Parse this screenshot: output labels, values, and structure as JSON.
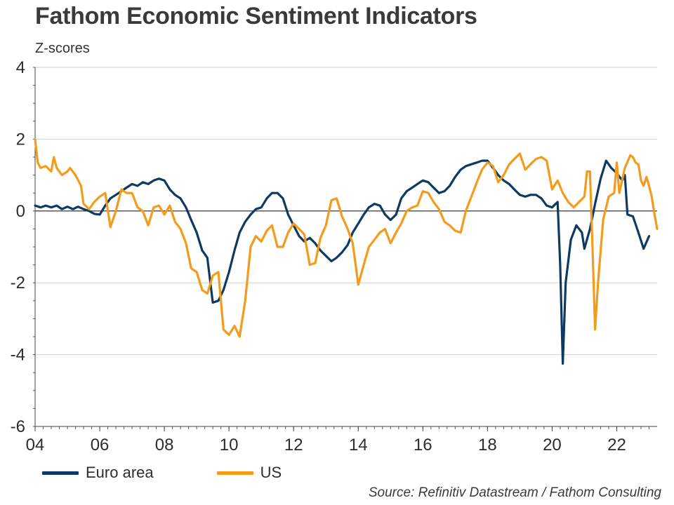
{
  "chart_data": {
    "type": "line",
    "title": "Fathom Economic Sentiment Indicators",
    "subtitle": "Z-scores",
    "xlabel": "",
    "ylabel": "",
    "source": "Source: Refinitiv Datastream / Fathom Consulting",
    "x_ticks": [
      "04",
      "06",
      "08",
      "10",
      "12",
      "14",
      "16",
      "18",
      "20",
      "22"
    ],
    "y_ticks": [
      4,
      2,
      0,
      -2,
      -4,
      -6
    ],
    "xlim": [
      2004.0,
      2023.25
    ],
    "ylim": [
      -6,
      4
    ],
    "grid": "horizontal",
    "legend_position": "bottom-left",
    "series": [
      {
        "name": "Euro area",
        "color": "#0d3a63",
        "points": [
          [
            2004.0,
            0.15
          ],
          [
            2004.17,
            0.1
          ],
          [
            2004.33,
            0.15
          ],
          [
            2004.5,
            0.1
          ],
          [
            2004.67,
            0.15
          ],
          [
            2004.83,
            0.05
          ],
          [
            2005.0,
            0.12
          ],
          [
            2005.17,
            0.05
          ],
          [
            2005.33,
            0.12
          ],
          [
            2005.5,
            0.05
          ],
          [
            2005.67,
            0.0
          ],
          [
            2005.83,
            -0.08
          ],
          [
            2006.0,
            -0.1
          ],
          [
            2006.17,
            0.15
          ],
          [
            2006.33,
            0.35
          ],
          [
            2006.5,
            0.45
          ],
          [
            2006.67,
            0.55
          ],
          [
            2006.83,
            0.65
          ],
          [
            2007.0,
            0.75
          ],
          [
            2007.17,
            0.7
          ],
          [
            2007.33,
            0.8
          ],
          [
            2007.5,
            0.75
          ],
          [
            2007.67,
            0.85
          ],
          [
            2007.83,
            0.9
          ],
          [
            2008.0,
            0.85
          ],
          [
            2008.17,
            0.6
          ],
          [
            2008.33,
            0.45
          ],
          [
            2008.5,
            0.35
          ],
          [
            2008.67,
            0.1
          ],
          [
            2008.83,
            -0.25
          ],
          [
            2009.0,
            -0.6
          ],
          [
            2009.17,
            -1.1
          ],
          [
            2009.33,
            -1.3
          ],
          [
            2009.5,
            -2.55
          ],
          [
            2009.67,
            -2.5
          ],
          [
            2009.83,
            -2.2
          ],
          [
            2010.0,
            -1.7
          ],
          [
            2010.17,
            -1.1
          ],
          [
            2010.33,
            -0.6
          ],
          [
            2010.5,
            -0.3
          ],
          [
            2010.67,
            -0.1
          ],
          [
            2010.83,
            0.05
          ],
          [
            2011.0,
            0.1
          ],
          [
            2011.17,
            0.35
          ],
          [
            2011.33,
            0.5
          ],
          [
            2011.5,
            0.5
          ],
          [
            2011.67,
            0.35
          ],
          [
            2011.83,
            -0.1
          ],
          [
            2012.0,
            -0.4
          ],
          [
            2012.17,
            -0.7
          ],
          [
            2012.33,
            -0.85
          ],
          [
            2012.5,
            -0.75
          ],
          [
            2012.67,
            -0.9
          ],
          [
            2012.83,
            -1.1
          ],
          [
            2013.0,
            -1.25
          ],
          [
            2013.17,
            -1.4
          ],
          [
            2013.33,
            -1.3
          ],
          [
            2013.5,
            -1.15
          ],
          [
            2013.67,
            -0.95
          ],
          [
            2013.83,
            -0.6
          ],
          [
            2014.0,
            -0.35
          ],
          [
            2014.17,
            -0.1
          ],
          [
            2014.33,
            0.1
          ],
          [
            2014.5,
            0.2
          ],
          [
            2014.67,
            0.15
          ],
          [
            2014.83,
            -0.1
          ],
          [
            2015.0,
            -0.25
          ],
          [
            2015.17,
            -0.1
          ],
          [
            2015.33,
            0.35
          ],
          [
            2015.5,
            0.55
          ],
          [
            2015.67,
            0.65
          ],
          [
            2015.83,
            0.75
          ],
          [
            2016.0,
            0.85
          ],
          [
            2016.17,
            0.8
          ],
          [
            2016.33,
            0.65
          ],
          [
            2016.5,
            0.5
          ],
          [
            2016.67,
            0.55
          ],
          [
            2016.83,
            0.7
          ],
          [
            2017.0,
            0.95
          ],
          [
            2017.17,
            1.15
          ],
          [
            2017.33,
            1.25
          ],
          [
            2017.5,
            1.3
          ],
          [
            2017.67,
            1.35
          ],
          [
            2017.83,
            1.4
          ],
          [
            2018.0,
            1.4
          ],
          [
            2018.17,
            1.2
          ],
          [
            2018.33,
            1.0
          ],
          [
            2018.5,
            0.85
          ],
          [
            2018.67,
            0.75
          ],
          [
            2018.83,
            0.6
          ],
          [
            2019.0,
            0.45
          ],
          [
            2019.17,
            0.4
          ],
          [
            2019.33,
            0.45
          ],
          [
            2019.5,
            0.45
          ],
          [
            2019.67,
            0.35
          ],
          [
            2019.83,
            0.15
          ],
          [
            2020.0,
            0.1
          ],
          [
            2020.17,
            0.25
          ],
          [
            2020.25,
            -1.5
          ],
          [
            2020.33,
            -4.25
          ],
          [
            2020.42,
            -2.0
          ],
          [
            2020.58,
            -0.8
          ],
          [
            2020.75,
            -0.4
          ],
          [
            2020.92,
            -0.6
          ],
          [
            2021.0,
            -1.05
          ],
          [
            2021.17,
            -0.5
          ],
          [
            2021.33,
            0.2
          ],
          [
            2021.5,
            0.9
          ],
          [
            2021.67,
            1.4
          ],
          [
            2021.83,
            1.2
          ],
          [
            2022.0,
            1.05
          ],
          [
            2022.17,
            0.85
          ],
          [
            2022.25,
            1.0
          ],
          [
            2022.33,
            -0.1
          ],
          [
            2022.5,
            -0.15
          ],
          [
            2022.67,
            -0.6
          ],
          [
            2022.83,
            -1.05
          ],
          [
            2023.0,
            -0.7
          ]
        ]
      },
      {
        "name": "US",
        "color": "#f59b1c",
        "points": [
          [
            2004.0,
            2.0
          ],
          [
            2004.08,
            1.35
          ],
          [
            2004.17,
            1.2
          ],
          [
            2004.33,
            1.25
          ],
          [
            2004.5,
            1.1
          ],
          [
            2004.58,
            1.5
          ],
          [
            2004.67,
            1.2
          ],
          [
            2004.83,
            1.0
          ],
          [
            2005.0,
            1.1
          ],
          [
            2005.08,
            1.2
          ],
          [
            2005.25,
            1.0
          ],
          [
            2005.42,
            0.7
          ],
          [
            2005.5,
            0.2
          ],
          [
            2005.67,
            0.05
          ],
          [
            2005.83,
            0.25
          ],
          [
            2006.0,
            0.4
          ],
          [
            2006.17,
            0.5
          ],
          [
            2006.33,
            -0.45
          ],
          [
            2006.5,
            0.0
          ],
          [
            2006.67,
            0.6
          ],
          [
            2006.83,
            0.5
          ],
          [
            2007.0,
            0.5
          ],
          [
            2007.17,
            0.1
          ],
          [
            2007.33,
            0.0
          ],
          [
            2007.5,
            -0.4
          ],
          [
            2007.67,
            0.1
          ],
          [
            2007.83,
            0.15
          ],
          [
            2008.0,
            -0.1
          ],
          [
            2008.17,
            0.15
          ],
          [
            2008.33,
            -0.3
          ],
          [
            2008.5,
            -0.5
          ],
          [
            2008.67,
            -0.9
          ],
          [
            2008.83,
            -1.6
          ],
          [
            2009.0,
            -1.7
          ],
          [
            2009.17,
            -2.2
          ],
          [
            2009.33,
            -2.3
          ],
          [
            2009.5,
            -1.8
          ],
          [
            2009.67,
            -1.7
          ],
          [
            2009.83,
            -3.3
          ],
          [
            2010.0,
            -3.45
          ],
          [
            2010.17,
            -3.2
          ],
          [
            2010.33,
            -3.5
          ],
          [
            2010.5,
            -2.5
          ],
          [
            2010.67,
            -1.0
          ],
          [
            2010.83,
            -0.7
          ],
          [
            2011.0,
            -0.85
          ],
          [
            2011.17,
            -0.55
          ],
          [
            2011.33,
            -0.4
          ],
          [
            2011.5,
            -1.0
          ],
          [
            2011.67,
            -1.0
          ],
          [
            2011.83,
            -0.6
          ],
          [
            2012.0,
            -0.35
          ],
          [
            2012.17,
            -0.5
          ],
          [
            2012.33,
            -0.65
          ],
          [
            2012.5,
            -1.5
          ],
          [
            2012.67,
            -1.45
          ],
          [
            2012.83,
            -0.75
          ],
          [
            2013.0,
            -0.4
          ],
          [
            2013.17,
            0.3
          ],
          [
            2013.33,
            0.35
          ],
          [
            2013.5,
            -0.15
          ],
          [
            2013.67,
            -0.5
          ],
          [
            2013.83,
            -0.9
          ],
          [
            2014.0,
            -2.05
          ],
          [
            2014.17,
            -1.5
          ],
          [
            2014.33,
            -1.0
          ],
          [
            2014.5,
            -0.8
          ],
          [
            2014.67,
            -0.6
          ],
          [
            2014.83,
            -0.5
          ],
          [
            2015.0,
            -0.9
          ],
          [
            2015.17,
            -0.6
          ],
          [
            2015.33,
            -0.35
          ],
          [
            2015.5,
            0.0
          ],
          [
            2015.67,
            0.1
          ],
          [
            2015.83,
            0.15
          ],
          [
            2016.0,
            0.55
          ],
          [
            2016.17,
            0.5
          ],
          [
            2016.33,
            0.25
          ],
          [
            2016.5,
            0.05
          ],
          [
            2016.67,
            -0.3
          ],
          [
            2016.83,
            -0.4
          ],
          [
            2017.0,
            -0.55
          ],
          [
            2017.17,
            -0.6
          ],
          [
            2017.33,
            0.0
          ],
          [
            2017.5,
            0.4
          ],
          [
            2017.67,
            0.8
          ],
          [
            2017.83,
            1.15
          ],
          [
            2018.0,
            1.35
          ],
          [
            2018.17,
            1.25
          ],
          [
            2018.33,
            0.8
          ],
          [
            2018.5,
            1.0
          ],
          [
            2018.67,
            1.3
          ],
          [
            2018.83,
            1.45
          ],
          [
            2019.0,
            1.6
          ],
          [
            2019.17,
            1.15
          ],
          [
            2019.33,
            1.3
          ],
          [
            2019.5,
            1.45
          ],
          [
            2019.67,
            1.5
          ],
          [
            2019.83,
            1.4
          ],
          [
            2020.0,
            0.6
          ],
          [
            2020.17,
            0.85
          ],
          [
            2020.33,
            0.5
          ],
          [
            2020.5,
            0.25
          ],
          [
            2020.67,
            0.1
          ],
          [
            2020.83,
            0.25
          ],
          [
            2021.0,
            0.4
          ],
          [
            2021.08,
            1.1
          ],
          [
            2021.17,
            1.1
          ],
          [
            2021.25,
            -1.0
          ],
          [
            2021.33,
            -3.3
          ],
          [
            2021.42,
            -2.0
          ],
          [
            2021.58,
            -0.25
          ],
          [
            2021.75,
            0.4
          ],
          [
            2021.92,
            0.5
          ],
          [
            2022.0,
            1.35
          ],
          [
            2022.08,
            0.5
          ],
          [
            2022.25,
            1.2
          ],
          [
            2022.42,
            1.55
          ],
          [
            2022.5,
            1.5
          ],
          [
            2022.58,
            1.35
          ],
          [
            2022.67,
            1.3
          ],
          [
            2022.75,
            0.85
          ],
          [
            2022.83,
            0.7
          ],
          [
            2022.92,
            0.95
          ],
          [
            2023.0,
            0.7
          ],
          [
            2023.08,
            0.4
          ],
          [
            2023.17,
            -0.1
          ],
          [
            2023.25,
            -0.5
          ]
        ]
      }
    ]
  }
}
